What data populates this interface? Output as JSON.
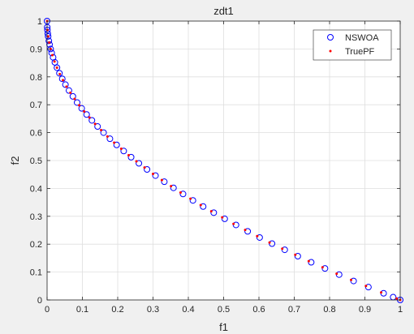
{
  "chart_data": {
    "type": "scatter",
    "title": "zdt1",
    "xlabel": "f1",
    "ylabel": "f2",
    "xlim": [
      0,
      1
    ],
    "ylim": [
      0,
      1
    ],
    "xticks": [
      "0",
      "0.1",
      "0.2",
      "0.3",
      "0.4",
      "0.5",
      "0.6",
      "0.7",
      "0.8",
      "0.9",
      "1"
    ],
    "yticks": [
      "0",
      "0.1",
      "0.2",
      "0.3",
      "0.4",
      "0.5",
      "0.6",
      "0.7",
      "0.8",
      "0.9",
      "1"
    ],
    "grid": true,
    "legend_position": "top-right",
    "series": [
      {
        "name": "NSWOA",
        "marker": "circle",
        "color": "#0000ff",
        "x": [
          0,
          0.0005,
          0.001,
          0.002,
          0.003,
          0.005,
          0.007,
          0.01,
          0.013,
          0.017,
          0.022,
          0.028,
          0.035,
          0.043,
          0.052,
          0.062,
          0.073,
          0.085,
          0.098,
          0.112,
          0.127,
          0.143,
          0.16,
          0.178,
          0.197,
          0.217,
          0.238,
          0.26,
          0.283,
          0.307,
          0.332,
          0.358,
          0.385,
          0.413,
          0.442,
          0.472,
          0.503,
          0.535,
          0.568,
          0.602,
          0.637,
          0.673,
          0.71,
          0.748,
          0.787,
          0.827,
          0.868,
          0.91,
          0.953,
          0.98,
          1
        ],
        "y": [
          1,
          0.978,
          0.968,
          0.955,
          0.945,
          0.929,
          0.916,
          0.9,
          0.886,
          0.87,
          0.852,
          0.833,
          0.813,
          0.793,
          0.772,
          0.751,
          0.73,
          0.708,
          0.687,
          0.665,
          0.644,
          0.622,
          0.6,
          0.578,
          0.556,
          0.534,
          0.512,
          0.49,
          0.468,
          0.446,
          0.424,
          0.402,
          0.38,
          0.357,
          0.335,
          0.313,
          0.291,
          0.269,
          0.246,
          0.224,
          0.202,
          0.18,
          0.157,
          0.135,
          0.113,
          0.091,
          0.068,
          0.046,
          0.024,
          0.01,
          0
        ]
      },
      {
        "name": "TruePF",
        "marker": "dot",
        "color": "#ff0000",
        "x": [
          0,
          0.001,
          0.003,
          0.006,
          0.01,
          0.015,
          0.021,
          0.028,
          0.036,
          0.045,
          0.055,
          0.066,
          0.078,
          0.091,
          0.105,
          0.12,
          0.136,
          0.153,
          0.171,
          0.19,
          0.21,
          0.231,
          0.253,
          0.276,
          0.3,
          0.325,
          0.351,
          0.378,
          0.406,
          0.435,
          0.465,
          0.496,
          0.528,
          0.561,
          0.595,
          0.63,
          0.666,
          0.703,
          0.741,
          0.78,
          0.82,
          0.861,
          0.903,
          0.946,
          0.99,
          1
        ],
        "y": [
          1,
          0.968,
          0.945,
          0.923,
          0.9,
          0.878,
          0.855,
          0.833,
          0.81,
          0.788,
          0.765,
          0.743,
          0.721,
          0.698,
          0.676,
          0.654,
          0.631,
          0.609,
          0.586,
          0.564,
          0.542,
          0.519,
          0.497,
          0.475,
          0.452,
          0.43,
          0.408,
          0.385,
          0.363,
          0.34,
          0.318,
          0.296,
          0.273,
          0.251,
          0.229,
          0.206,
          0.184,
          0.162,
          0.139,
          0.117,
          0.094,
          0.072,
          0.05,
          0.027,
          0.005,
          0
        ]
      }
    ]
  }
}
